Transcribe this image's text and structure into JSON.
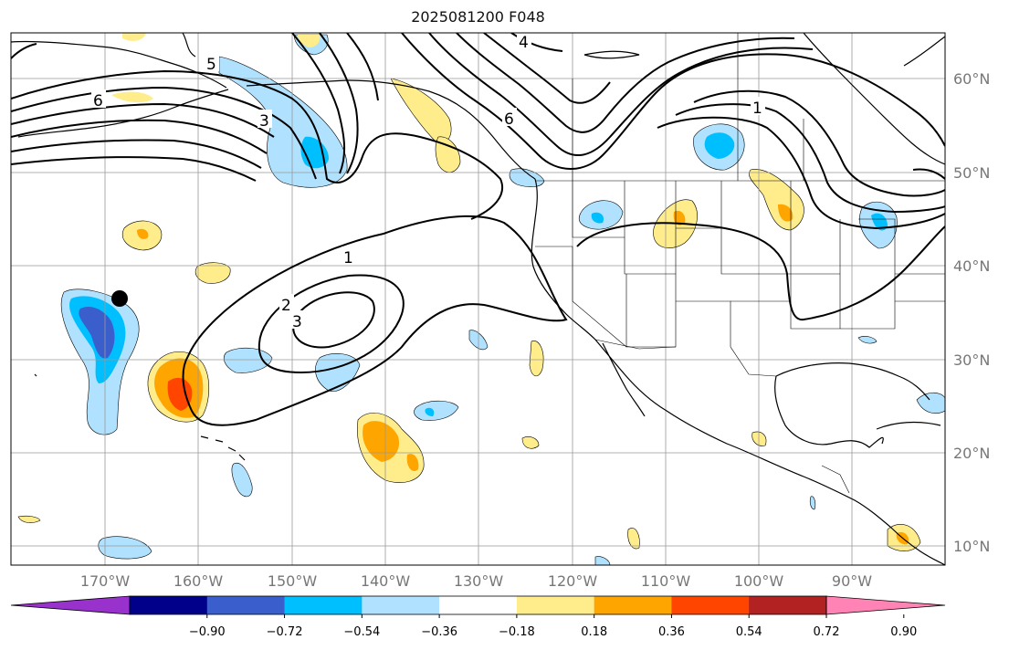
{
  "title": "2025081200 F048",
  "lat_labels": [
    "60°N",
    "50°N",
    "40°N",
    "30°N",
    "20°N",
    "10°N"
  ],
  "lon_labels": [
    "170°W",
    "160°W",
    "150°W",
    "140°W",
    "130°W",
    "120°W",
    "110°W",
    "100°W",
    "90°W"
  ],
  "colorbar": {
    "tick_labels": [
      "−0.90",
      "−0.72",
      "−0.54",
      "−0.36",
      "−0.18",
      "0.18",
      "0.36",
      "0.54",
      "0.72",
      "0.90"
    ],
    "colors": [
      "#9932cc",
      "#00008b",
      "#3a5fcd",
      "#00bfff",
      "#b0e2ff",
      "#ffffff",
      "#ffec8b",
      "#ffa500",
      "#ff4500",
      "#b22222",
      "#ff83b4"
    ]
  },
  "colors": {
    "land_outline": "#000000",
    "gridline": "#999999",
    "contour": "#000000",
    "marker": "#000000"
  },
  "contour_labels": [
    "1",
    "2",
    "3",
    "4",
    "5",
    "6"
  ]
}
